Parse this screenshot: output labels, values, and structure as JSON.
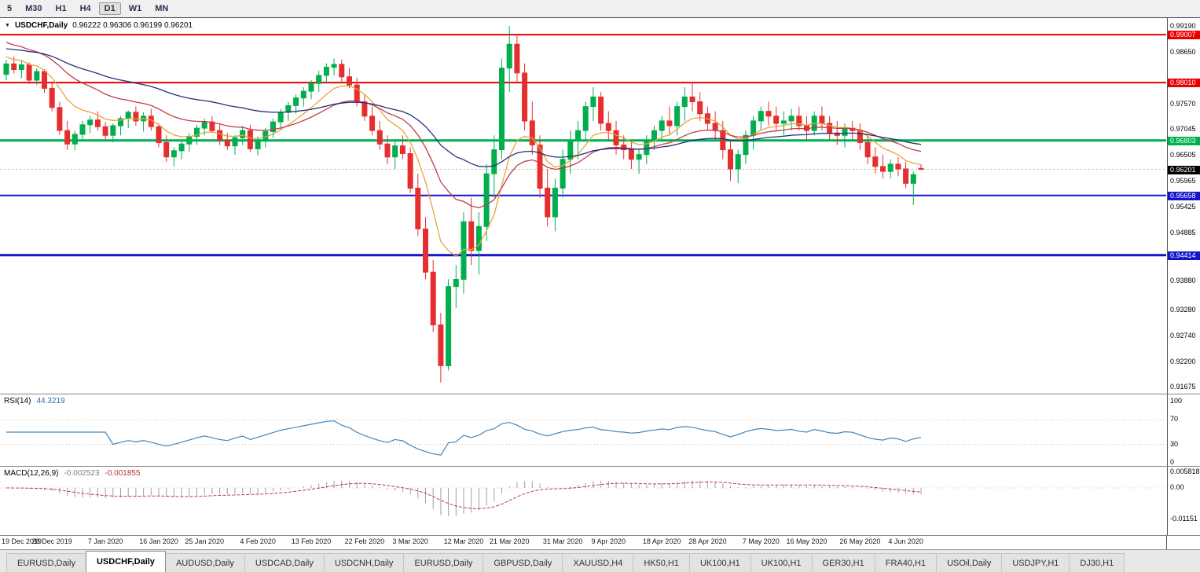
{
  "toolbar": {
    "timeframes": [
      {
        "label": "5",
        "active": false
      },
      {
        "label": "M30",
        "active": false
      },
      {
        "label": "H1",
        "active": false
      },
      {
        "label": "H4",
        "active": false
      },
      {
        "label": "D1",
        "active": true
      },
      {
        "label": "W1",
        "active": false
      },
      {
        "label": "MN",
        "active": false
      }
    ]
  },
  "chart": {
    "dropdown_glyph": "▼",
    "title": "USDCHF,Daily",
    "ohlc_text": "0.96222 0.96306 0.96199 0.96201"
  },
  "colors": {
    "bull": "#00AE4E",
    "bear": "#E62E2E",
    "background": "#FFFFFF",
    "resistance": "#E80000",
    "pivot_green": "#00B050",
    "support_blue": "#1414C8",
    "current_price_box": "#000000"
  },
  "chart_data": {
    "type": "candlestick",
    "symbol": "USDCHF",
    "timeframe": "Daily",
    "current_bar": {
      "open": 0.96222,
      "high": 0.96306,
      "low": 0.96199,
      "close": 0.96201
    },
    "ylim": [
      0.9154,
      0.9927
    ],
    "price_axis": [
      {
        "label": "0.99190",
        "hl": null
      },
      {
        "label": "0.99007",
        "hl": "#E80000"
      },
      {
        "label": "0.98650",
        "hl": null
      },
      {
        "label": "0.98010",
        "hl": "#E80000"
      },
      {
        "label": "0.97570",
        "hl": null
      },
      {
        "label": "0.97045",
        "hl": null
      },
      {
        "label": "0.96803",
        "hl": "#00B050"
      },
      {
        "label": "0.96505",
        "hl": null
      },
      {
        "label": "0.96201",
        "hl": "#000000"
      },
      {
        "label": "0.95965",
        "hl": null
      },
      {
        "label": "0.95658",
        "hl": "#1414C8"
      },
      {
        "label": "0.95425",
        "hl": null
      },
      {
        "label": "0.94885",
        "hl": null
      },
      {
        "label": "0.94414",
        "hl": "#1414C8"
      },
      {
        "label": "0.93880",
        "hl": null
      },
      {
        "label": "0.93280",
        "hl": null
      },
      {
        "label": "0.92740",
        "hl": null
      },
      {
        "label": "0.92200",
        "hl": null
      },
      {
        "label": "0.91675",
        "hl": null
      }
    ],
    "hlines": [
      {
        "price": 0.99007,
        "label": "0.99007",
        "color": "#E80000",
        "width": 2
      },
      {
        "price": 0.9801,
        "label": "0.98010",
        "color": "#E80000",
        "width": 2
      },
      {
        "price": 0.96803,
        "label": "0.96803",
        "color": "#00B050",
        "width": 3
      },
      {
        "price": 0.95658,
        "label": "0.95658",
        "color": "#1414C8",
        "width": 2
      },
      {
        "price": 0.94414,
        "label": "0.94414",
        "color": "#1414C8",
        "width": 3
      }
    ],
    "current_price": {
      "value": 0.96201,
      "label": "0.96201",
      "color": "#000000"
    },
    "moving_averages": [
      {
        "name": "ma-fast",
        "color": "#E8A33C",
        "period": 9,
        "seed": 0.9858
      },
      {
        "name": "ma-mid",
        "color": "#C23B4B",
        "period": 21,
        "seed": 0.9889
      },
      {
        "name": "ma-slow",
        "color": "#22307E",
        "period": 45,
        "seed": 0.9873
      }
    ],
    "candles": [
      [
        0.9818,
        0.9848,
        0.9806,
        0.984
      ],
      [
        0.984,
        0.9855,
        0.982,
        0.9828
      ],
      [
        0.9828,
        0.9846,
        0.981,
        0.9838
      ],
      [
        0.9838,
        0.9843,
        0.9798,
        0.9806
      ],
      [
        0.9806,
        0.9831,
        0.9796,
        0.9824
      ],
      [
        0.9824,
        0.9829,
        0.978,
        0.9789
      ],
      [
        0.9789,
        0.9801,
        0.9741,
        0.9749
      ],
      [
        0.9749,
        0.9761,
        0.9692,
        0.9701
      ],
      [
        0.9701,
        0.9721,
        0.9661,
        0.9673
      ],
      [
        0.9673,
        0.9701,
        0.966,
        0.9693
      ],
      [
        0.9693,
        0.9721,
        0.9681,
        0.9713
      ],
      [
        0.9713,
        0.9731,
        0.9696,
        0.9723
      ],
      [
        0.9723,
        0.9741,
        0.9701,
        0.9709
      ],
      [
        0.9709,
        0.9719,
        0.9681,
        0.9691
      ],
      [
        0.9691,
        0.9716,
        0.9676,
        0.9711
      ],
      [
        0.9711,
        0.9731,
        0.9691,
        0.9726
      ],
      [
        0.9726,
        0.9743,
        0.9706,
        0.9739
      ],
      [
        0.9739,
        0.9751,
        0.9711,
        0.9721
      ],
      [
        0.9721,
        0.9739,
        0.9699,
        0.9731
      ],
      [
        0.9731,
        0.9746,
        0.9701,
        0.9709
      ],
      [
        0.9709,
        0.9716,
        0.9666,
        0.9676
      ],
      [
        0.9676,
        0.9691,
        0.9636,
        0.9646
      ],
      [
        0.9646,
        0.9666,
        0.9626,
        0.9659
      ],
      [
        0.9659,
        0.9681,
        0.9641,
        0.9673
      ],
      [
        0.9673,
        0.9696,
        0.9656,
        0.9689
      ],
      [
        0.9689,
        0.9713,
        0.9671,
        0.9706
      ],
      [
        0.9706,
        0.9726,
        0.9691,
        0.9719
      ],
      [
        0.9719,
        0.9731,
        0.9696,
        0.9701
      ],
      [
        0.9701,
        0.9716,
        0.9671,
        0.9681
      ],
      [
        0.9681,
        0.9696,
        0.9661,
        0.9669
      ],
      [
        0.9669,
        0.9691,
        0.9651,
        0.9686
      ],
      [
        0.9686,
        0.9711,
        0.9671,
        0.9701
      ],
      [
        0.9701,
        0.9713,
        0.9656,
        0.9663
      ],
      [
        0.9663,
        0.9689,
        0.9649,
        0.9681
      ],
      [
        0.9681,
        0.9706,
        0.9666,
        0.9699
      ],
      [
        0.9699,
        0.9726,
        0.9686,
        0.9719
      ],
      [
        0.9719,
        0.9746,
        0.9701,
        0.9739
      ],
      [
        0.9739,
        0.9761,
        0.9721,
        0.9753
      ],
      [
        0.9753,
        0.9776,
        0.9736,
        0.9769
      ],
      [
        0.9769,
        0.9791,
        0.9751,
        0.9783
      ],
      [
        0.9783,
        0.9806,
        0.9766,
        0.9799
      ],
      [
        0.9799,
        0.9826,
        0.9781,
        0.9816
      ],
      [
        0.9816,
        0.9841,
        0.9801,
        0.9833
      ],
      [
        0.9833,
        0.9851,
        0.9816,
        0.9839
      ],
      [
        0.9839,
        0.9849,
        0.9801,
        0.9813
      ],
      [
        0.9813,
        0.9831,
        0.9789,
        0.9796
      ],
      [
        0.9796,
        0.9811,
        0.9751,
        0.9761
      ],
      [
        0.9761,
        0.9776,
        0.9721,
        0.9731
      ],
      [
        0.9731,
        0.9751,
        0.9691,
        0.9701
      ],
      [
        0.9701,
        0.9721,
        0.9661,
        0.9673
      ],
      [
        0.9673,
        0.9691,
        0.9631,
        0.9646
      ],
      [
        0.9646,
        0.9681,
        0.9621,
        0.9669
      ],
      [
        0.9669,
        0.9691,
        0.9641,
        0.9653
      ],
      [
        0.9653,
        0.9666,
        0.9571,
        0.9581
      ],
      [
        0.9581,
        0.9611,
        0.9481,
        0.9496
      ],
      [
        0.9496,
        0.9521,
        0.9391,
        0.9406
      ],
      [
        0.9406,
        0.9431,
        0.9281,
        0.9296
      ],
      [
        0.9296,
        0.9321,
        0.9176,
        0.9211
      ],
      [
        0.9211,
        0.9391,
        0.9201,
        0.9376
      ],
      [
        0.9376,
        0.9421,
        0.9331,
        0.9391
      ],
      [
        0.9391,
        0.9531,
        0.9361,
        0.9511
      ],
      [
        0.9511,
        0.9561,
        0.9421,
        0.9451
      ],
      [
        0.9451,
        0.9531,
        0.9401,
        0.9501
      ],
      [
        0.9501,
        0.9631,
        0.9471,
        0.9611
      ],
      [
        0.9611,
        0.9691,
        0.9561,
        0.9661
      ],
      [
        0.9661,
        0.9851,
        0.9641,
        0.9831
      ],
      [
        0.9831,
        0.9919,
        0.9781,
        0.9881
      ],
      [
        0.9881,
        0.9901,
        0.9801,
        0.9821
      ],
      [
        0.9821,
        0.9841,
        0.9701,
        0.9721
      ],
      [
        0.9721,
        0.9761,
        0.9651,
        0.9671
      ],
      [
        0.9671,
        0.9691,
        0.9561,
        0.9581
      ],
      [
        0.9581,
        0.9621,
        0.9501,
        0.9521
      ],
      [
        0.9521,
        0.9601,
        0.9491,
        0.9581
      ],
      [
        0.9581,
        0.9661,
        0.9561,
        0.9641
      ],
      [
        0.9641,
        0.9701,
        0.9611,
        0.9681
      ],
      [
        0.9681,
        0.9721,
        0.9641,
        0.9701
      ],
      [
        0.9701,
        0.9761,
        0.9681,
        0.9751
      ],
      [
        0.9751,
        0.9791,
        0.9721,
        0.9771
      ],
      [
        0.9771,
        0.9781,
        0.9701,
        0.9716
      ],
      [
        0.9716,
        0.9741,
        0.9681,
        0.9701
      ],
      [
        0.9701,
        0.9721,
        0.9651,
        0.9671
      ],
      [
        0.9671,
        0.9691,
        0.9641,
        0.9661
      ],
      [
        0.9661,
        0.9681,
        0.9621,
        0.9641
      ],
      [
        0.9641,
        0.9661,
        0.9611,
        0.9651
      ],
      [
        0.9651,
        0.9691,
        0.9631,
        0.9681
      ],
      [
        0.9681,
        0.9711,
        0.9661,
        0.9701
      ],
      [
        0.9701,
        0.9731,
        0.9681,
        0.9721
      ],
      [
        0.9721,
        0.9751,
        0.9691,
        0.9711
      ],
      [
        0.9711,
        0.9761,
        0.9691,
        0.9751
      ],
      [
        0.9751,
        0.9791,
        0.9721,
        0.9771
      ],
      [
        0.9771,
        0.9801,
        0.9741,
        0.9761
      ],
      [
        0.9761,
        0.9781,
        0.9721,
        0.9736
      ],
      [
        0.9736,
        0.9751,
        0.9701,
        0.9716
      ],
      [
        0.9716,
        0.9741,
        0.9681,
        0.9701
      ],
      [
        0.9701,
        0.9721,
        0.9641,
        0.9661
      ],
      [
        0.9661,
        0.9681,
        0.9596,
        0.9621
      ],
      [
        0.9621,
        0.9661,
        0.9591,
        0.9651
      ],
      [
        0.9651,
        0.9701,
        0.9631,
        0.9691
      ],
      [
        0.9691,
        0.9731,
        0.9661,
        0.9721
      ],
      [
        0.9721,
        0.9751,
        0.9701,
        0.9741
      ],
      [
        0.9741,
        0.9761,
        0.9711,
        0.9731
      ],
      [
        0.9731,
        0.9751,
        0.9701,
        0.9716
      ],
      [
        0.9716,
        0.9741,
        0.9691,
        0.9721
      ],
      [
        0.9721,
        0.9746,
        0.9701,
        0.9731
      ],
      [
        0.9731,
        0.9751,
        0.9701,
        0.9711
      ],
      [
        0.9711,
        0.9731,
        0.9681,
        0.9701
      ],
      [
        0.9701,
        0.9741,
        0.9691,
        0.9731
      ],
      [
        0.9731,
        0.9751,
        0.9701,
        0.9716
      ],
      [
        0.9716,
        0.9731,
        0.9681,
        0.9696
      ],
      [
        0.9696,
        0.9721,
        0.9671,
        0.9691
      ],
      [
        0.9691,
        0.9716,
        0.9666,
        0.9706
      ],
      [
        0.9706,
        0.9721,
        0.9681,
        0.9701
      ],
      [
        0.9701,
        0.9716,
        0.9661,
        0.9676
      ],
      [
        0.9676,
        0.9691,
        0.9631,
        0.9646
      ],
      [
        0.9646,
        0.9666,
        0.9611,
        0.9626
      ],
      [
        0.9626,
        0.9651,
        0.9601,
        0.9616
      ],
      [
        0.9616,
        0.9641,
        0.9601,
        0.9631
      ],
      [
        0.9631,
        0.9646,
        0.9606,
        0.9621
      ],
      [
        0.9621,
        0.9636,
        0.9581,
        0.9591
      ],
      [
        0.9591,
        0.9616,
        0.9546,
        0.9609
      ],
      [
        0.96222,
        0.96306,
        0.96199,
        0.96201
      ]
    ],
    "date_ticks": [
      {
        "label": "19 Dec 2019",
        "index": 0
      },
      {
        "label": "28 Dec 2019",
        "index": 6
      },
      {
        "label": "7 Jan 2020",
        "index": 13
      },
      {
        "label": "16 Jan 2020",
        "index": 20
      },
      {
        "label": "25 Jan 2020",
        "index": 26
      },
      {
        "label": "4 Feb 2020",
        "index": 33
      },
      {
        "label": "13 Feb 2020",
        "index": 40
      },
      {
        "label": "22 Feb 2020",
        "index": 47
      },
      {
        "label": "3 Mar 2020",
        "index": 53
      },
      {
        "label": "12 Mar 2020",
        "index": 60
      },
      {
        "label": "21 Mar 2020",
        "index": 66
      },
      {
        "label": "31 Mar 2020",
        "index": 73
      },
      {
        "label": "9 Apr 2020",
        "index": 79
      },
      {
        "label": "18 Apr 2020",
        "index": 86
      },
      {
        "label": "28 Apr 2020",
        "index": 92
      },
      {
        "label": "7 May 2020",
        "index": 99
      },
      {
        "label": "16 May 2020",
        "index": 105
      },
      {
        "label": "26 May 2020",
        "index": 112
      },
      {
        "label": "4 Jun 2020",
        "index": 118
      }
    ],
    "rsi": {
      "label": "RSI(14)",
      "value": "44.3219",
      "period": 14,
      "color": "#3F87C0",
      "levels": [
        "100",
        "70",
        "30",
        "0"
      ],
      "upper": 70,
      "lower": 30,
      "ylim": [
        0,
        100
      ]
    },
    "macd": {
      "label": "MACD(12,26,9)",
      "main_value": "-0.002523",
      "signal_value": "-0.001855",
      "fast": 12,
      "slow": 26,
      "signal_period": 9,
      "hist_color": "#A0A0A0",
      "signal_color": "#C03A3A",
      "axis_labels": [
        "0.005818",
        "0.00",
        "-0.01151"
      ]
    }
  },
  "tabs": [
    {
      "label": "EURUSD,Daily",
      "active": false
    },
    {
      "label": "USDCHF,Daily",
      "active": true
    },
    {
      "label": "AUDUSD,Daily",
      "active": false
    },
    {
      "label": "USDCAD,Daily",
      "active": false
    },
    {
      "label": "USDCNH,Daily",
      "active": false
    },
    {
      "label": "EURUSD,Daily",
      "active": false
    },
    {
      "label": "GBPUSD,Daily",
      "active": false
    },
    {
      "label": "XAUUSD,H4",
      "active": false
    },
    {
      "label": "HK50,H1",
      "active": false
    },
    {
      "label": "UK100,H1",
      "active": false
    },
    {
      "label": "UK100,H1",
      "active": false
    },
    {
      "label": "GER30,H1",
      "active": false
    },
    {
      "label": "FRA40,H1",
      "active": false
    },
    {
      "label": "USOil,Daily",
      "active": false
    },
    {
      "label": "USDJPY,H1",
      "active": false
    },
    {
      "label": "DJ30,H1",
      "active": false
    }
  ]
}
